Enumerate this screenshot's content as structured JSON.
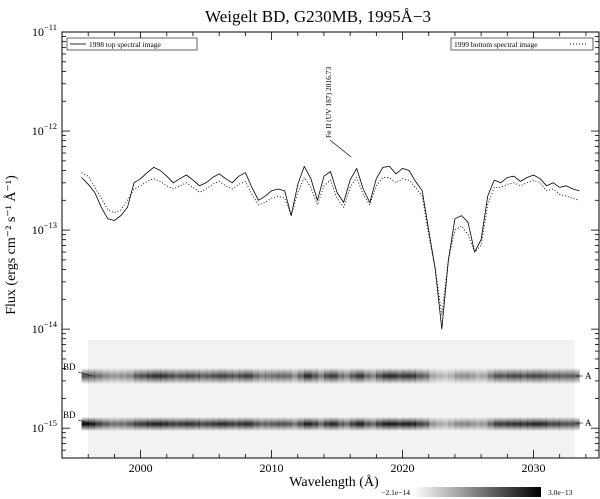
{
  "chart_data": {
    "type": "line",
    "title": "Weigelt BD, G230MB, 1995Å−3",
    "xlabel": "Wavelength (Å)",
    "ylabel": "Flux (ergs cm⁻² s⁻¹ Å⁻¹)",
    "xlim": [
      1994,
      2035
    ],
    "ylim": [
      5e-16,
      1e-11
    ],
    "yscale": "log",
    "x_ticks": [
      2000,
      2010,
      2020,
      2030
    ],
    "y_ticks": [
      {
        "value": 1e-11,
        "base": "10",
        "exp": "−11"
      },
      {
        "value": 1e-12,
        "base": "10",
        "exp": "−12"
      },
      {
        "value": 1e-13,
        "base": "10",
        "exp": "−13"
      },
      {
        "value": 1e-14,
        "base": "10",
        "exp": "−14"
      },
      {
        "value": 1e-15,
        "base": "10",
        "exp": "−15"
      }
    ],
    "legend_placement": "top (left and right)",
    "grid": false,
    "series": [
      {
        "name": "1998 top spectral image",
        "style": "solid",
        "points": [
          [
            1995.5,
            3.4e-13
          ],
          [
            1996.0,
            2.9e-13
          ],
          [
            1996.5,
            2.4e-13
          ],
          [
            1997.0,
            1.7e-13
          ],
          [
            1997.5,
            1.3e-13
          ],
          [
            1998.0,
            1.25e-13
          ],
          [
            1998.5,
            1.4e-13
          ],
          [
            1999.0,
            1.7e-13
          ],
          [
            1999.5,
            3e-13
          ],
          [
            2000.0,
            3.3e-13
          ],
          [
            2000.5,
            3.8e-13
          ],
          [
            2001.0,
            4.3e-13
          ],
          [
            2001.5,
            4e-13
          ],
          [
            2002.0,
            3.5e-13
          ],
          [
            2002.5,
            3e-13
          ],
          [
            2003.0,
            3.3e-13
          ],
          [
            2003.5,
            3.6e-13
          ],
          [
            2004.0,
            3.2e-13
          ],
          [
            2004.5,
            2.8e-13
          ],
          [
            2005.0,
            3e-13
          ],
          [
            2005.5,
            3.4e-13
          ],
          [
            2006.0,
            3.7e-13
          ],
          [
            2006.5,
            3.3e-13
          ],
          [
            2007.0,
            3e-13
          ],
          [
            2007.5,
            3.5e-13
          ],
          [
            2008.0,
            3.8e-13
          ],
          [
            2008.5,
            2.7e-13
          ],
          [
            2009.0,
            2e-13
          ],
          [
            2009.5,
            2.2e-13
          ],
          [
            2010.0,
            2.5e-13
          ],
          [
            2010.5,
            2.6e-13
          ],
          [
            2011.0,
            2.5e-13
          ],
          [
            2011.5,
            1.4e-13
          ],
          [
            2012.0,
            2.9e-13
          ],
          [
            2012.5,
            4.4e-13
          ],
          [
            2013.0,
            3.3e-13
          ],
          [
            2013.5,
            2e-13
          ],
          [
            2014.0,
            3.5e-13
          ],
          [
            2014.5,
            3.9e-13
          ],
          [
            2015.0,
            2.4e-13
          ],
          [
            2015.5,
            1.9e-13
          ],
          [
            2016.0,
            3.2e-13
          ],
          [
            2016.5,
            4.2e-13
          ],
          [
            2017.0,
            2.6e-13
          ],
          [
            2017.5,
            1.9e-13
          ],
          [
            2018.0,
            3.3e-13
          ],
          [
            2018.5,
            4.3e-13
          ],
          [
            2019.0,
            4.4e-13
          ],
          [
            2019.5,
            3.7e-13
          ],
          [
            2020.0,
            4.2e-13
          ],
          [
            2020.5,
            4e-13
          ],
          [
            2021.0,
            3.1e-13
          ],
          [
            2021.5,
            2.5e-13
          ],
          [
            2022.0,
            1e-13
          ],
          [
            2022.5,
            4e-14
          ],
          [
            2023.0,
            1e-14
          ],
          [
            2023.5,
            5e-14
          ],
          [
            2024.0,
            1.3e-13
          ],
          [
            2024.5,
            1.4e-13
          ],
          [
            2025.0,
            1.2e-13
          ],
          [
            2025.5,
            6e-14
          ],
          [
            2026.0,
            8e-14
          ],
          [
            2026.5,
            2.2e-13
          ],
          [
            2027.0,
            3.2e-13
          ],
          [
            2027.5,
            3e-13
          ],
          [
            2028.0,
            3.4e-13
          ],
          [
            2028.5,
            3.5e-13
          ],
          [
            2029.0,
            3.1e-13
          ],
          [
            2029.5,
            3.4e-13
          ],
          [
            2030.0,
            3.6e-13
          ],
          [
            2030.5,
            3.3e-13
          ],
          [
            2031.0,
            2.8e-13
          ],
          [
            2031.5,
            3e-13
          ],
          [
            2032.0,
            2.7e-13
          ],
          [
            2032.5,
            2.8e-13
          ],
          [
            2033.0,
            2.6e-13
          ],
          [
            2033.5,
            2.5e-13
          ]
        ]
      },
      {
        "name": "1999 bottom spectral image",
        "style": "dotted",
        "points": [
          [
            1995.5,
            3.8e-13
          ],
          [
            1996.0,
            3.5e-13
          ],
          [
            1996.5,
            2.7e-13
          ],
          [
            1997.0,
            2.1e-13
          ],
          [
            1997.5,
            1.6e-13
          ],
          [
            1998.0,
            1.5e-13
          ],
          [
            1998.5,
            1.6e-13
          ],
          [
            1999.0,
            2e-13
          ],
          [
            1999.5,
            2.6e-13
          ],
          [
            2000.0,
            2.8e-13
          ],
          [
            2000.5,
            3.1e-13
          ],
          [
            2001.0,
            3.3e-13
          ],
          [
            2001.5,
            3.1e-13
          ],
          [
            2002.0,
            2.8e-13
          ],
          [
            2002.5,
            2.6e-13
          ],
          [
            2003.0,
            2.8e-13
          ],
          [
            2003.5,
            3e-13
          ],
          [
            2004.0,
            2.7e-13
          ],
          [
            2004.5,
            2.4e-13
          ],
          [
            2005.0,
            2.6e-13
          ],
          [
            2005.5,
            2.9e-13
          ],
          [
            2006.0,
            3.1e-13
          ],
          [
            2006.5,
            2.8e-13
          ],
          [
            2007.0,
            2.6e-13
          ],
          [
            2007.5,
            2.9e-13
          ],
          [
            2008.0,
            3.1e-13
          ],
          [
            2008.5,
            2.3e-13
          ],
          [
            2009.0,
            1.8e-13
          ],
          [
            2009.5,
            1.9e-13
          ],
          [
            2010.0,
            2.1e-13
          ],
          [
            2010.5,
            2.2e-13
          ],
          [
            2011.0,
            2.1e-13
          ],
          [
            2011.5,
            1.4e-13
          ],
          [
            2012.0,
            2.4e-13
          ],
          [
            2012.5,
            3.4e-13
          ],
          [
            2013.0,
            2.7e-13
          ],
          [
            2013.5,
            1.8e-13
          ],
          [
            2014.0,
            2.8e-13
          ],
          [
            2014.5,
            3.2e-13
          ],
          [
            2015.0,
            2.1e-13
          ],
          [
            2015.5,
            1.7e-13
          ],
          [
            2016.0,
            2.7e-13
          ],
          [
            2016.5,
            3.4e-13
          ],
          [
            2017.0,
            2.3e-13
          ],
          [
            2017.5,
            1.8e-13
          ],
          [
            2018.0,
            2.8e-13
          ],
          [
            2018.5,
            3.4e-13
          ],
          [
            2019.0,
            3.4e-13
          ],
          [
            2019.5,
            3e-13
          ],
          [
            2020.0,
            3.3e-13
          ],
          [
            2020.5,
            3.2e-13
          ],
          [
            2021.0,
            2.7e-13
          ],
          [
            2021.5,
            2.2e-13
          ],
          [
            2022.0,
            9e-14
          ],
          [
            2022.5,
            4e-14
          ],
          [
            2023.0,
            1.4e-14
          ],
          [
            2023.5,
            5e-14
          ],
          [
            2024.0,
            1e-13
          ],
          [
            2024.5,
            1.1e-13
          ],
          [
            2025.0,
            9e-14
          ],
          [
            2025.5,
            6e-14
          ],
          [
            2026.0,
            7e-14
          ],
          [
            2026.5,
            1.8e-13
          ],
          [
            2027.0,
            2.7e-13
          ],
          [
            2027.5,
            2.7e-13
          ],
          [
            2028.0,
            2.9e-13
          ],
          [
            2028.5,
            3e-13
          ],
          [
            2029.0,
            2.8e-13
          ],
          [
            2029.5,
            3e-13
          ],
          [
            2030.0,
            3.2e-13
          ],
          [
            2030.5,
            3e-13
          ],
          [
            2031.0,
            2.5e-13
          ],
          [
            2031.5,
            2.6e-13
          ],
          [
            2032.0,
            2.3e-13
          ],
          [
            2032.5,
            2.2e-13
          ],
          [
            2033.0,
            2.1e-13
          ],
          [
            2033.5,
            2e-13
          ]
        ]
      }
    ],
    "annotations": [
      {
        "text": "Fe II (UV 187) 2016.73",
        "x": 2016.73,
        "y": 4.2e-13
      }
    ],
    "spectral_image": {
      "x_range": [
        1995.5,
        2033.5
      ],
      "labels_left": [
        "BD",
        "BD"
      ],
      "labels_right": [
        "A",
        "A"
      ],
      "colorbar_min_label": "−2.1e−14",
      "colorbar_max_label": "3.0e−13",
      "colormap": "white-to-black"
    }
  }
}
